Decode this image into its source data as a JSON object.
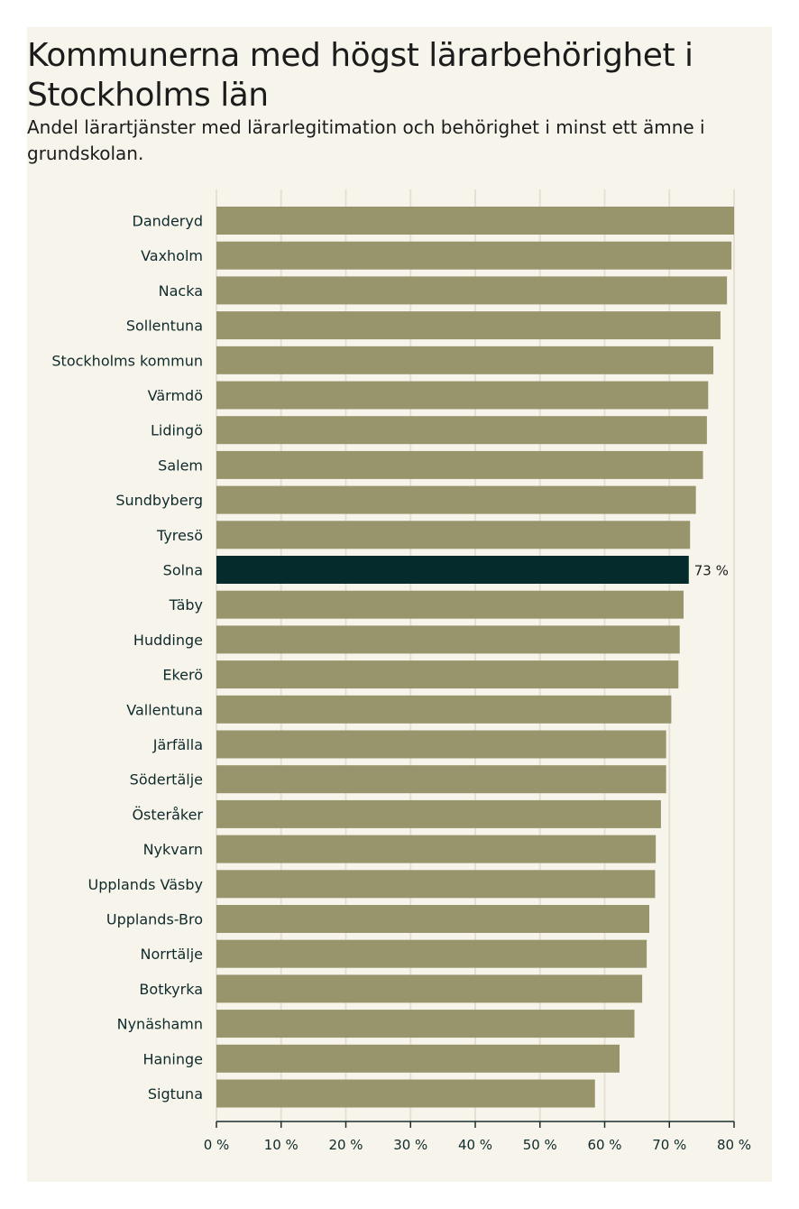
{
  "chart_data": {
    "type": "bar",
    "orientation": "horizontal",
    "title": "Kommunerna med högst lärarbehörighet i Stockholms län",
    "subtitle": "Andel lärartjänster med lärarlegitimation och behörighet i minst ett ämne i grundskolan.",
    "categories": [
      "Danderyd",
      "Vaxholm",
      "Nacka",
      "Sollentuna",
      "Stockholms kommun",
      "Värmdö",
      "Lidingö",
      "Salem",
      "Sundbyberg",
      "Tyresö",
      "Solna",
      "Täby",
      "Huddinge",
      "Ekerö",
      "Vallentuna",
      "Järfälla",
      "Södertälje",
      "Österåker",
      "Nykvarn",
      "Upplands Väsby",
      "Upplands-Bro",
      "Norrtälje",
      "Botkyrka",
      "Nynäshamn",
      "Haninge",
      "Sigtuna"
    ],
    "values": [
      80.0,
      79.6,
      78.9,
      77.9,
      76.8,
      76.0,
      75.8,
      75.2,
      74.1,
      73.2,
      73.0,
      72.2,
      71.6,
      71.4,
      70.3,
      69.5,
      69.5,
      68.7,
      67.9,
      67.8,
      66.9,
      66.5,
      65.8,
      64.6,
      62.3,
      58.5
    ],
    "highlight": "Solna",
    "highlight_label": "73 %",
    "xlim": [
      0,
      80
    ],
    "xticks": [
      0,
      10,
      20,
      30,
      40,
      50,
      60,
      70,
      80
    ],
    "xtick_labels": [
      "0 %",
      "10 %",
      "20 %",
      "30 %",
      "40 %",
      "50 %",
      "60 %",
      "70 %",
      "80 %"
    ],
    "xlabel": "",
    "ylabel": "",
    "grid": true,
    "colors": {
      "bar": "#98956c",
      "highlight": "#062b2c",
      "grid": "#e4e1d4",
      "background": "#f7f5eb"
    }
  }
}
